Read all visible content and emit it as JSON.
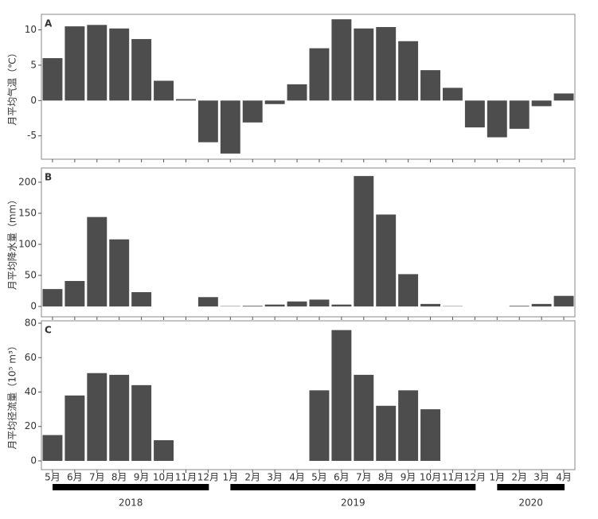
{
  "chart_data": [
    {
      "type": "bar",
      "label": "A",
      "y_label": "月平均气温（℃）",
      "color": "#4d4d4d",
      "categories": [
        "5月",
        "6月",
        "7月",
        "8月",
        "9月",
        "10月",
        "11月",
        "12月",
        "1月",
        "2月",
        "3月",
        "4月",
        "5月",
        "6月",
        "7月",
        "8月",
        "9月",
        "10月",
        "11月",
        "12月",
        "1月",
        "2月",
        "3月",
        "4月"
      ],
      "values": [
        6.0,
        10.5,
        10.7,
        10.2,
        8.7,
        2.8,
        0.2,
        -5.9,
        -7.5,
        -3.1,
        -0.5,
        2.3,
        7.4,
        11.5,
        10.2,
        10.4,
        8.4,
        4.3,
        1.8,
        -3.8,
        -5.2,
        -4.0,
        -0.8,
        1.0
      ],
      "ylim": [
        -8.3,
        12.2
      ],
      "yticks": [
        -5,
        0,
        5,
        10
      ]
    },
    {
      "type": "bar",
      "label": "B",
      "y_label": "月平均降水量（mm）",
      "color": "#4d4d4d",
      "categories": [
        "5月",
        "6月",
        "7月",
        "8月",
        "9月",
        "10月",
        "11月",
        "12月",
        "1月",
        "2月",
        "3月",
        "4月",
        "5月",
        "6月",
        "7月",
        "8月",
        "9月",
        "10月",
        "11月",
        "12月",
        "1月",
        "2月",
        "3月",
        "4月"
      ],
      "values": [
        28,
        41,
        144,
        108,
        23,
        0,
        0,
        15,
        0.5,
        1,
        3,
        8,
        11,
        3,
        210,
        148,
        52,
        4,
        0.5,
        0,
        0,
        1,
        4,
        17
      ],
      "ylim": [
        -16.7,
        223
      ],
      "yticks": [
        0,
        50,
        100,
        150,
        200
      ]
    },
    {
      "type": "bar",
      "label": "C",
      "y_label": "月平均径流量（10⁵ m³）",
      "color": "#4d4d4d",
      "categories": [
        "5月",
        "6月",
        "7月",
        "8月",
        "9月",
        "10月",
        "11月",
        "12月",
        "1月",
        "2月",
        "3月",
        "4月",
        "5月",
        "6月",
        "7月",
        "8月",
        "9月",
        "10月",
        "11月",
        "12月",
        "1月",
        "2月",
        "3月",
        "4月"
      ],
      "values": [
        15,
        38,
        51,
        50,
        44,
        12,
        0,
        0,
        0,
        0,
        0,
        0,
        41,
        76,
        50,
        32,
        41,
        30,
        0,
        0,
        0,
        0,
        0,
        0
      ],
      "ylim": [
        -5.1,
        81.4
      ],
      "yticks": [
        0,
        20,
        40,
        60,
        80
      ]
    }
  ],
  "x_groups": [
    {
      "name": "2018",
      "size": 8
    },
    {
      "name": "2019",
      "size": 12
    },
    {
      "name": "2020",
      "size": 4
    }
  ]
}
